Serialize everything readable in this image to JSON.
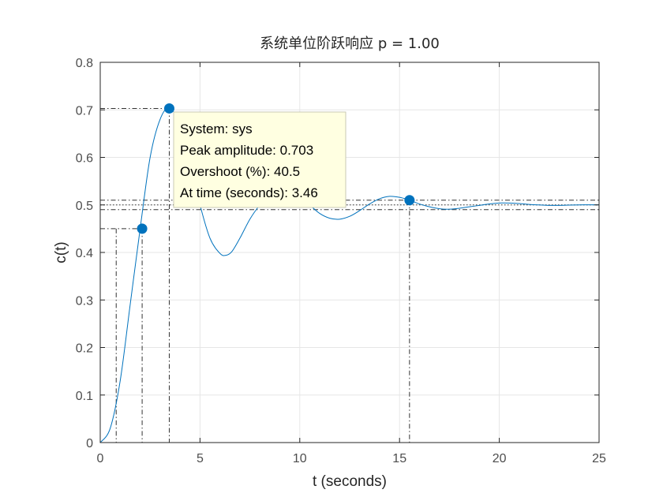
{
  "chart_data": {
    "type": "line",
    "title": "系统单位阶跃响应 p = 1.00",
    "xlabel": "t (seconds)",
    "ylabel": "c(t)",
    "xlim": [
      0,
      25
    ],
    "ylim": [
      0,
      0.8
    ],
    "xticks": [
      0,
      5,
      10,
      15,
      20,
      25
    ],
    "xtick_labels": [
      "0",
      "5",
      "10",
      "15",
      "20",
      "25"
    ],
    "yticks": [
      0,
      0.1,
      0.2,
      0.3,
      0.4,
      0.5,
      0.6,
      0.7,
      0.8
    ],
    "ytick_labels": [
      "0",
      "0.1",
      "0.2",
      "0.3",
      "0.4",
      "0.5",
      "0.6",
      "0.7",
      "0.8"
    ],
    "grid": true,
    "series": [
      {
        "color": "#0072BD",
        "x": [
          0,
          0.5,
          1.0,
          1.5,
          2.0,
          2.5,
          3.0,
          3.46,
          4.0,
          4.5,
          5.0,
          5.5,
          6.0,
          6.3,
          6.6,
          7.0,
          7.5,
          8.0,
          8.5,
          9.0,
          9.5,
          10.0,
          10.5,
          11.0,
          11.5,
          12.0,
          12.5,
          13.0,
          13.5,
          14.0,
          14.5,
          15.0,
          15.5,
          16.0,
          16.5,
          17.0,
          17.5,
          18.0,
          18.5,
          19.0,
          19.5,
          20.0,
          20.5,
          21.0,
          21.5,
          22.0,
          22.5,
          23.0,
          23.5,
          24.0,
          24.5,
          25.0
        ],
        "y": [
          0,
          0.03,
          0.13,
          0.29,
          0.45,
          0.6,
          0.68,
          0.703,
          0.67,
          0.59,
          0.5,
          0.43,
          0.398,
          0.394,
          0.402,
          0.43,
          0.47,
          0.5,
          0.523,
          0.534,
          0.533,
          0.52,
          0.5,
          0.482,
          0.472,
          0.47,
          0.476,
          0.488,
          0.502,
          0.513,
          0.518,
          0.516,
          0.51,
          0.502,
          0.496,
          0.492,
          0.491,
          0.493,
          0.496,
          0.499,
          0.502,
          0.504,
          0.504,
          0.503,
          0.501,
          0.5,
          0.499,
          0.499,
          0.4995,
          0.5,
          0.5003,
          0.5002
        ]
      }
    ],
    "characteristic_points": [
      {
        "name": "peak",
        "x": 3.46,
        "y": 0.703
      },
      {
        "name": "rise-end",
        "x": 2.1,
        "y": 0.45
      },
      {
        "name": "settling",
        "x": 15.5,
        "y": 0.51
      }
    ],
    "reference_lines": {
      "steady_state": 0.5,
      "settling_band": [
        0.49,
        0.51
      ],
      "rise_start_x": 0.8,
      "rise_end_x": 2.1,
      "peak_x": 3.46,
      "peak_y": 0.703,
      "rise_end_y": 0.45,
      "settling_x": 15.5
    },
    "datatip": {
      "lines": [
        "System: sys",
        "Peak amplitude: 0.703",
        "Overshoot (%): 40.5",
        "At time (seconds): 3.46"
      ]
    }
  }
}
